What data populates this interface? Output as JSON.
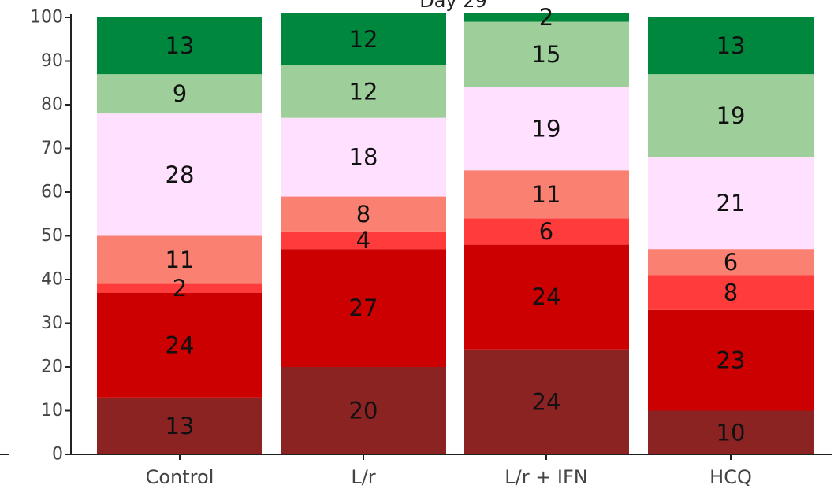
{
  "chart_data": {
    "type": "bar",
    "stacked": true,
    "title": "Day 29",
    "xlabel": "",
    "ylabel": "",
    "ylim": [
      0,
      100
    ],
    "yticks": [
      0,
      10,
      20,
      30,
      40,
      50,
      60,
      70,
      80,
      90,
      100
    ],
    "grid": false,
    "categories": [
      "Control",
      "L/r",
      "L/r + IFN",
      "HCQ"
    ],
    "series": [
      {
        "color": "#8b2323",
        "values": [
          13,
          20,
          24,
          10
        ]
      },
      {
        "color": "#cc0000",
        "values": [
          24,
          27,
          24,
          23
        ]
      },
      {
        "color": "#ff3b3b",
        "values": [
          2,
          4,
          6,
          8
        ]
      },
      {
        "color": "#fa8072",
        "values": [
          11,
          8,
          11,
          6
        ]
      },
      {
        "color": "#ffe0ff",
        "values": [
          28,
          18,
          19,
          21
        ]
      },
      {
        "color": "#9ecf9a",
        "values": [
          9,
          12,
          15,
          19
        ]
      },
      {
        "color": "#00873e",
        "values": [
          13,
          12,
          2,
          13
        ]
      }
    ]
  }
}
